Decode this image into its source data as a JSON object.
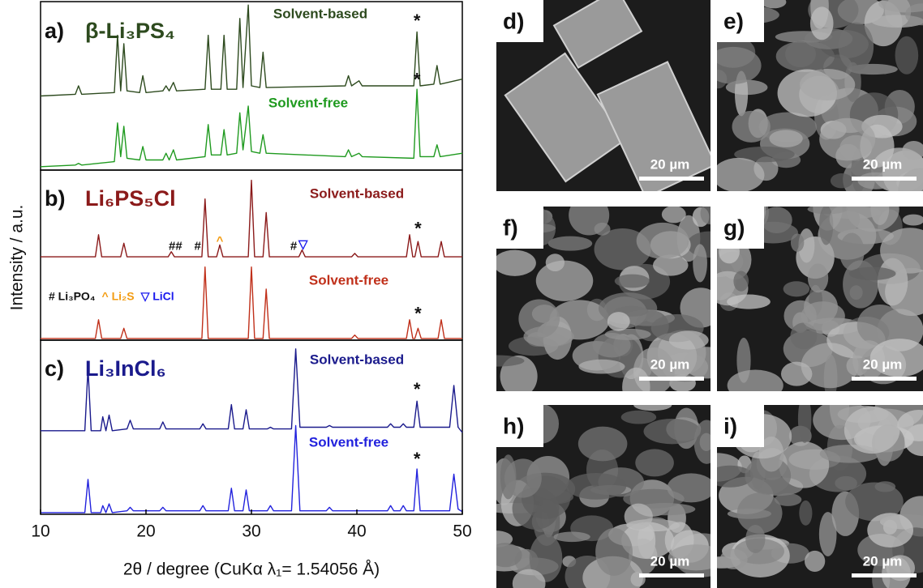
{
  "chart_data": [
    {
      "type": "line",
      "panel": "a)",
      "title": "β-Li₃PS₄",
      "color": "#2d4a1e",
      "xlim": [
        10,
        50
      ],
      "ylim": [
        0,
        100
      ],
      "x": [
        10,
        13.3,
        13.6,
        13.9,
        17.0,
        17.3,
        17.6,
        17.9,
        18.2,
        19.4,
        19.7,
        20.0,
        21.6,
        21.9,
        22.2,
        22.6,
        22.9,
        25.6,
        25.9,
        26.2,
        27.1,
        27.4,
        27.7,
        28.6,
        28.9,
        29.2,
        29.7,
        30.0,
        30.8,
        31.1,
        31.4,
        38.9,
        39.2,
        39.5,
        40.2,
        40.5,
        45.4,
        45.7,
        46.0,
        47.3,
        47.6,
        47.9,
        50
      ],
      "series": [
        {
          "name": "Solvent-based",
          "color": "#2d4a1e",
          "values": [
            44,
            45,
            50,
            45,
            46,
            80,
            47,
            75,
            47,
            46,
            56,
            46,
            47,
            50,
            47,
            52,
            47,
            48,
            80,
            48,
            48,
            80,
            48,
            48,
            90,
            49,
            98,
            50,
            49,
            70,
            49,
            50,
            56,
            50,
            53,
            50,
            50,
            82,
            50,
            51,
            62,
            51,
            54
          ]
        },
        {
          "name": "Solvent-free",
          "color": "#1f9a1f",
          "values": [
            2,
            3,
            4,
            3,
            5,
            28,
            8,
            26,
            7,
            6,
            14,
            6,
            6,
            10,
            6,
            12,
            6,
            8,
            27,
            9,
            9,
            24,
            9,
            10,
            34,
            12,
            38,
            11,
            10,
            21,
            10,
            8,
            12,
            8,
            10,
            8,
            7,
            48,
            8,
            8,
            15,
            8,
            10
          ]
        }
      ],
      "annotations": [
        {
          "text": "*",
          "x": 45.7,
          "y": 88,
          "color": "#111111"
        },
        {
          "text": "*",
          "x": 45.7,
          "y": 53,
          "color": "#111111"
        }
      ]
    },
    {
      "type": "line",
      "panel": "b)",
      "title": "Li₆PS₅Cl",
      "color": "#8b1a1a",
      "xlim": [
        10,
        50
      ],
      "ylim": [
        0,
        100
      ],
      "ylabel": "Intensity / a.u.",
      "x": [
        10,
        15.2,
        15.5,
        15.8,
        17.6,
        17.9,
        18.2,
        22.1,
        22.4,
        22.7,
        25.3,
        25.6,
        25.9,
        26.7,
        27.0,
        27.3,
        29.7,
        30.0,
        30.3,
        31.1,
        31.4,
        31.7,
        34.5,
        34.8,
        35.1,
        39.5,
        39.8,
        40.1,
        44.7,
        45.0,
        45.3,
        45.5,
        45.8,
        46.1,
        47.7,
        48.0,
        48.3,
        50
      ],
      "series": [
        {
          "name": "Solvent-based",
          "color": "#8b1a1a",
          "values": [
            49,
            49,
            62,
            49,
            49,
            57,
            49,
            49,
            52,
            49,
            49,
            83,
            49,
            49,
            56,
            49,
            49,
            94,
            49,
            49,
            75,
            49,
            49,
            53,
            49,
            49,
            51,
            49,
            49,
            62,
            49,
            49,
            58,
            49,
            49,
            58,
            49,
            49
          ]
        },
        {
          "name": "Solvent-free",
          "color": "#c0301a",
          "values": [
            1,
            1,
            12,
            1,
            1,
            7,
            1,
            1,
            1,
            1,
            1,
            43,
            1,
            1,
            1,
            1,
            1,
            43,
            1,
            1,
            30,
            1,
            1,
            1,
            1,
            1,
            3,
            1,
            1,
            12,
            1,
            1,
            7,
            1,
            1,
            12,
            1,
            1
          ]
        }
      ],
      "annotations": [
        {
          "text": "##",
          "x": 22.8,
          "y": 55,
          "color": "#111111"
        },
        {
          "text": "#",
          "x": 24.9,
          "y": 55,
          "color": "#111111"
        },
        {
          "text": "^",
          "x": 27.0,
          "y": 58,
          "color": "#f39c12"
        },
        {
          "text": "#",
          "x": 34.0,
          "y": 55,
          "color": "#111111"
        },
        {
          "text": "▽",
          "x": 34.9,
          "y": 56,
          "color": "#1a1aee"
        },
        {
          "text": "*",
          "x": 45.8,
          "y": 65,
          "color": "#111111"
        },
        {
          "text": "*",
          "x": 45.8,
          "y": 15,
          "color": "#111111"
        }
      ],
      "legend": [
        {
          "text": "# Li₃PO₄",
          "color": "#111111"
        },
        {
          "text": "^ Li₂S",
          "color": "#f39c12"
        },
        {
          "text": "▽ LiCl",
          "color": "#1a1aee"
        }
      ]
    },
    {
      "type": "line",
      "panel": "c)",
      "title": "Li₃InCl₆",
      "color": "#1a1a8c",
      "xlim": [
        10,
        50
      ],
      "ylim": [
        0,
        100
      ],
      "xticks": [
        10,
        20,
        30,
        40,
        50
      ],
      "xlabel": "2θ / degree (CuKα λ₁= 1.54056 Å)",
      "x": [
        10,
        14.2,
        14.5,
        14.8,
        15.7,
        15.9,
        16.2,
        16.5,
        16.8,
        18.2,
        18.5,
        18.8,
        21.3,
        21.6,
        21.9,
        25.1,
        25.4,
        25.7,
        27.8,
        28.1,
        28.4,
        29.2,
        29.5,
        29.8,
        31.5,
        31.8,
        32.1,
        33.8,
        34.2,
        34.6,
        37.1,
        37.4,
        37.7,
        42.9,
        43.2,
        43.5,
        44.1,
        44.4,
        44.7,
        45.4,
        45.7,
        46.0,
        48.8,
        49.2,
        49.6,
        50
      ],
      "series": [
        {
          "name": "Solvent-based",
          "color": "#1a1a8c",
          "values": [
            48,
            48,
            84,
            48,
            48,
            56,
            48,
            57,
            48,
            49,
            54,
            49,
            49,
            53,
            49,
            49,
            52,
            49,
            49,
            63,
            49,
            49,
            60,
            49,
            49,
            50,
            49,
            49,
            95,
            50,
            50,
            51,
            50,
            50,
            52,
            50,
            50,
            52,
            50,
            50,
            65,
            50,
            50,
            74,
            50,
            47
          ]
        },
        {
          "name": "Solvent-free",
          "color": "#2222dd",
          "values": [
            1,
            1,
            20,
            1,
            1,
            5,
            1,
            6,
            1,
            2,
            4,
            2,
            2,
            4,
            2,
            2,
            5,
            2,
            2,
            15,
            2,
            2,
            14,
            2,
            2,
            5,
            2,
            2,
            51,
            2,
            2,
            4,
            2,
            2,
            5,
            2,
            2,
            5,
            2,
            2,
            26,
            2,
            2,
            23,
            3,
            1.5
          ]
        }
      ],
      "annotations": [
        {
          "text": "*",
          "x": 45.7,
          "y": 71,
          "color": "#111111"
        },
        {
          "text": "*",
          "x": 45.7,
          "y": 31,
          "color": "#111111"
        }
      ]
    }
  ],
  "images": [
    {
      "label": "d)",
      "scale": "20 µm"
    },
    {
      "label": "e)",
      "scale": "20 µm"
    },
    {
      "label": "f)",
      "scale": "20 µm"
    },
    {
      "label": "g)",
      "scale": "20 µm"
    },
    {
      "label": "h)",
      "scale": "20 µm"
    },
    {
      "label": "i)",
      "scale": "20 µm"
    }
  ]
}
